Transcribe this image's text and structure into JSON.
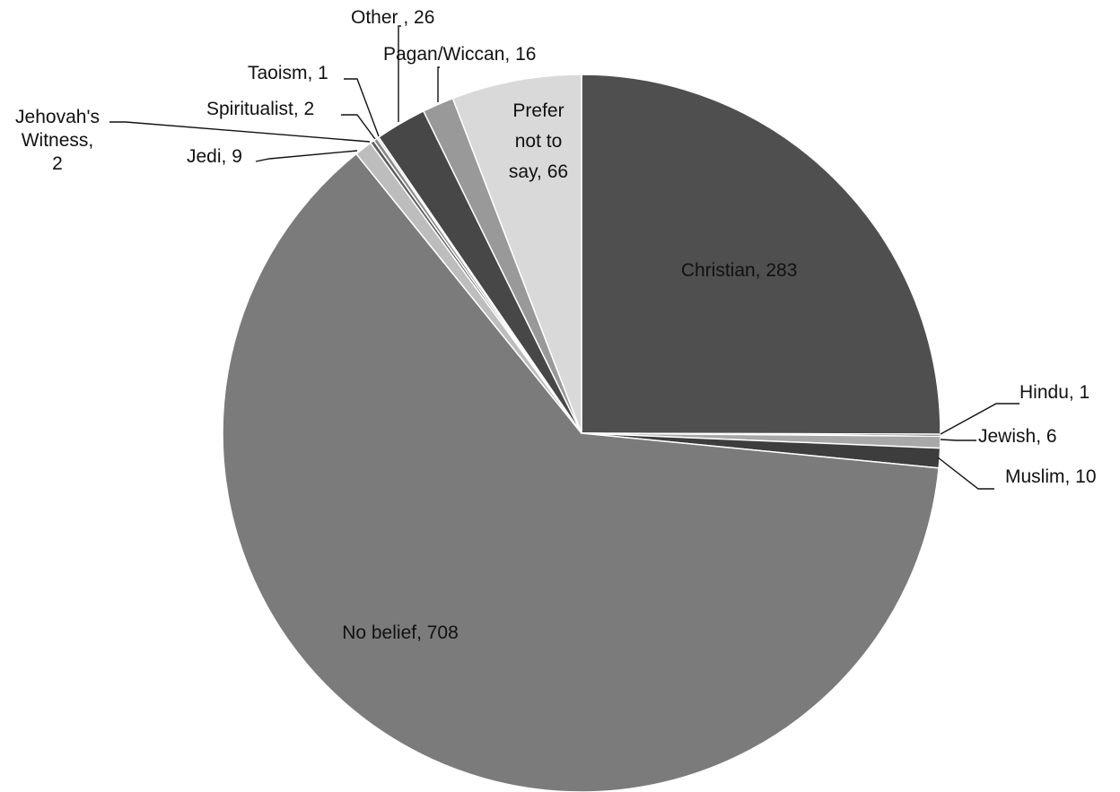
{
  "chart_data": {
    "type": "pie",
    "title": "",
    "slices": [
      {
        "label": "Christian, 283",
        "name": "Christian",
        "value": 283,
        "color": "#4f4f4f"
      },
      {
        "label": "Hindu, 1",
        "name": "Hindu",
        "value": 1,
        "color": "#3a3a3a"
      },
      {
        "label": "Jewish, 6",
        "name": "Jewish",
        "value": 6,
        "color": "#a8a8a8"
      },
      {
        "label": "Muslim, 10",
        "name": "Muslim",
        "value": 10,
        "color": "#3d3d3d"
      },
      {
        "label": "No belief, 708",
        "name": "No belief",
        "value": 708,
        "color": "#7b7b7b"
      },
      {
        "label": "Jedi, 9",
        "name": "Jedi",
        "value": 9,
        "color": "#bdbdbd"
      },
      {
        "label": "Jehovah's Witness, 2",
        "name": "Jehovah's Witness",
        "value": 2,
        "color": "#5c5c5c"
      },
      {
        "label": "Spiritualist, 2",
        "name": "Spiritualist",
        "value": 2,
        "color": "#8a8a8a"
      },
      {
        "label": "Taoism, 1",
        "name": "Taoism",
        "value": 1,
        "color": "#cfcfcf"
      },
      {
        "label": "Other , 26",
        "name": "Other ",
        "value": 26,
        "color": "#474747"
      },
      {
        "label": "Pagan/Wiccan, 16",
        "name": "Pagan/Wiccan",
        "value": 16,
        "color": "#999999"
      },
      {
        "label": "Prefer not to say, 66",
        "name": "Prefer not to say",
        "value": 66,
        "color": "#d9d9d9"
      }
    ],
    "start": "top",
    "direction": "clockwise",
    "legend": "none"
  }
}
